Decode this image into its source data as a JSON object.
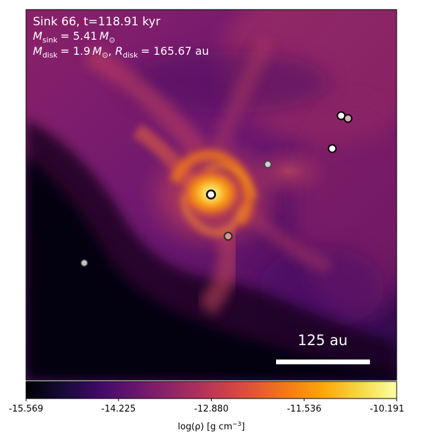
{
  "annotation": {
    "line1": "Sink 66, t=118.91 kyr",
    "line2_symbol": "M",
    "line2_sub": "sink",
    "line2_value": "= 5.41",
    "line2_unit": "M",
    "line3_m_symbol": "M",
    "line3_m_sub": "disk",
    "line3_m_value": "= 1.9",
    "line3_m_unit": "M",
    "line3_r_symbol": "R",
    "line3_r_sub": "disk",
    "line3_r_value": "= 165.67 au"
  },
  "scalebar": {
    "label": "125 au"
  },
  "colorbar": {
    "colormap": "inferno",
    "ticks": [
      "-15.569",
      "-14.225",
      "-12.880",
      "-11.536",
      "-10.191"
    ],
    "label_prefix": "log(ρ) [g cm",
    "label_exp": "−3",
    "label_suffix": "]"
  },
  "sinks": [
    {
      "name": "sink-primary",
      "fill": "#ffffff"
    },
    {
      "name": "sink-upper-right-1",
      "fill": "#ffffff"
    },
    {
      "name": "sink-upper-right-2",
      "fill": "#d8b0b8"
    },
    {
      "name": "sink-right",
      "fill": "#ffffff"
    },
    {
      "name": "sink-center-right",
      "fill": "#d8c8d8"
    },
    {
      "name": "sink-lower-center",
      "fill": "#d89a88"
    },
    {
      "name": "sink-left",
      "fill": "#c8c4c8"
    }
  ]
}
